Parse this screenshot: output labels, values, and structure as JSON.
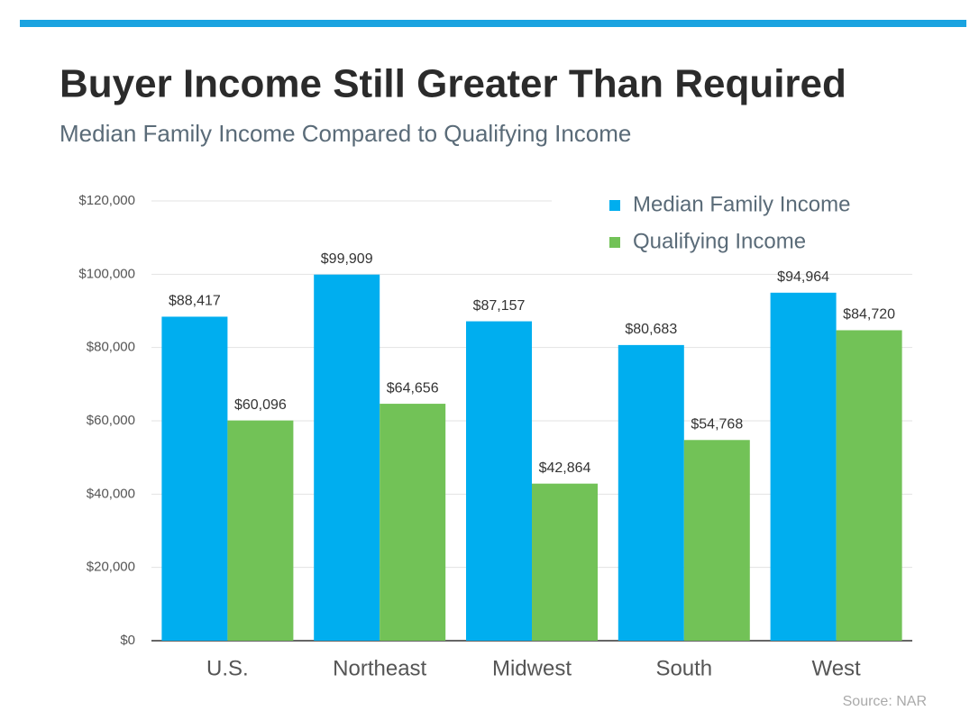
{
  "chart_data": {
    "type": "grouped-bar",
    "title": "Buyer Income Still Greater Than Required",
    "subtitle": "Median Family Income Compared to Qualifying Income",
    "source": "Source: NAR",
    "categories": [
      "U.S.",
      "Northeast",
      "Midwest",
      "South",
      "West"
    ],
    "series": [
      {
        "name": "Median Family Income",
        "color": "#00aeef",
        "values": [
          88417,
          99909,
          87157,
          80683,
          94964
        ],
        "value_labels": [
          "$88,417",
          "$99,909",
          "$87,157",
          "$80,683",
          "$94,964"
        ]
      },
      {
        "name": "Qualifying Income",
        "color": "#72c257",
        "values": [
          60096,
          64656,
          42864,
          54768,
          84720
        ],
        "value_labels": [
          "$60,096",
          "$64,656",
          "$42,864",
          "$54,768",
          "$84,720"
        ]
      }
    ],
    "ylim": [
      0,
      120000
    ],
    "yticks": [
      {
        "value": 0,
        "label": "$0"
      },
      {
        "value": 20000,
        "label": "$20,000"
      },
      {
        "value": 40000,
        "label": "$40,000"
      },
      {
        "value": 60000,
        "label": "$60,000"
      },
      {
        "value": 80000,
        "label": "$80,000"
      },
      {
        "value": 100000,
        "label": "$100,000"
      },
      {
        "value": 120000,
        "label": "$120,000"
      }
    ],
    "grid": true,
    "legend": "top-right"
  }
}
